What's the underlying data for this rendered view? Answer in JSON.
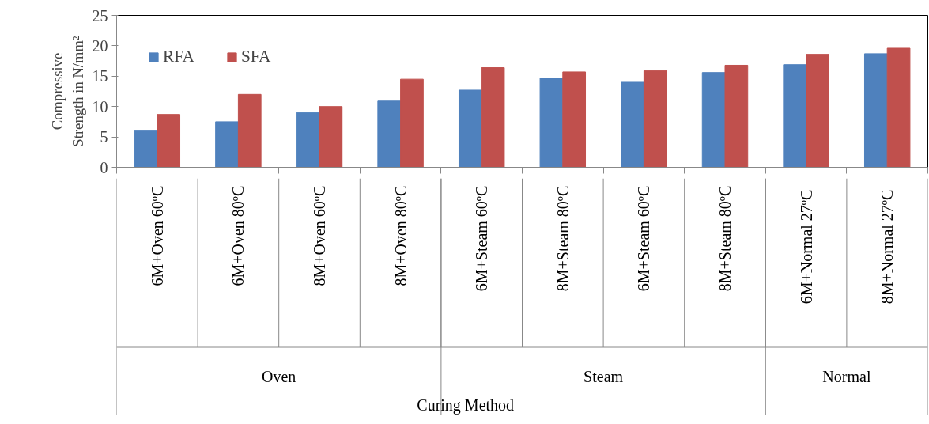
{
  "chart_data": {
    "type": "bar",
    "ylabel": "Compressive\nStrength in N/mm²",
    "categories": [
      "6M+Oven 60ºC",
      "6M+Oven 80ºC",
      "8M+Oven 60ºC",
      "8M+Oven 80ºC",
      "6M+Steam 60ºC",
      "8M+Steam 80ºC",
      "6M+Steam 60ºC",
      "8M+Steam 80ºC",
      "6M+Normal  27ºC",
      "8M+Normal  27ºC"
    ],
    "annotations": [
      "Oven",
      "Steam",
      "Normal",
      "Curing Method"
    ],
    "series": [
      {
        "name": "RFA",
        "color": "#4f81bd",
        "values": [
          6.1,
          7.5,
          9.0,
          10.9,
          12.7,
          14.7,
          14.0,
          15.6,
          16.9,
          18.7
        ]
      },
      {
        "name": "SFA",
        "color": "#c0504d",
        "values": [
          8.7,
          12.0,
          10.0,
          14.5,
          16.4,
          15.7,
          15.9,
          16.8,
          18.6,
          19.6
        ]
      }
    ],
    "ylim": [
      0,
      25
    ],
    "yticks": [
      0,
      5,
      10,
      15,
      20,
      25
    ],
    "grid": false,
    "legend": "top left"
  }
}
